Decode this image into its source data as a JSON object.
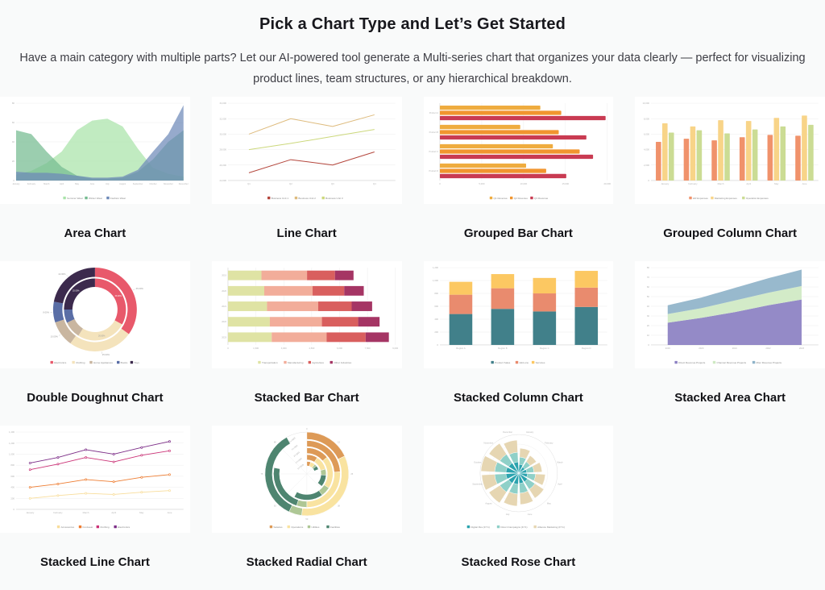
{
  "header": {
    "title": "Pick a Chart Type and Let’s Get Started",
    "description": "Have a main category with multiple parts? Let our AI-powered tool generate a Multi-series chart that organizes your data clearly — perfect for visualizing product lines, team structures, or any hierarchical breakdown."
  },
  "colors": {
    "page_bg": "#f9fafa",
    "card_bg": "#ffffff",
    "title_text": "#17171c",
    "body_text": "#3d3d44"
  },
  "cards": [
    {
      "label": "Area Chart"
    },
    {
      "label": "Line Chart"
    },
    {
      "label": "Grouped Bar Chart"
    },
    {
      "label": "Grouped Column Chart"
    },
    {
      "label": "Double Doughnut Chart"
    },
    {
      "label": "Stacked Bar Chart"
    },
    {
      "label": "Stacked Column Chart"
    },
    {
      "label": "Stacked Area Chart"
    },
    {
      "label": "Stacked Line Chart"
    },
    {
      "label": "Stacked Radial Chart"
    },
    {
      "label": "Stacked Rose Chart"
    }
  ],
  "chart_data": [
    {
      "type": "area",
      "title": "Area Chart",
      "ylim": [
        0,
        80
      ],
      "yticks": 4,
      "grid": true,
      "legend_position": "bottom",
      "x": [
        "January",
        "February",
        "March",
        "April",
        "May",
        "June",
        "July",
        "August",
        "September",
        "October",
        "November",
        "December"
      ],
      "series": [
        {
          "name": "Summer Wear",
          "color": "#a9e3a9",
          "values": [
            6,
            10,
            18,
            30,
            52,
            62,
            64,
            56,
            33,
            13,
            7,
            4
          ]
        },
        {
          "name": "Winter Wear",
          "color": "#74bb90",
          "values": [
            52,
            48,
            30,
            14,
            5,
            2,
            2,
            3,
            9,
            22,
            40,
            52
          ]
        },
        {
          "name": "Fashion Wear",
          "color": "#6d89b8",
          "values": [
            9,
            8,
            8,
            7,
            5,
            3,
            3,
            4,
            11,
            30,
            48,
            78
          ]
        }
      ]
    },
    {
      "type": "line",
      "title": "Line Chart",
      "ylim": [
        24000,
        34000
      ],
      "yticks": 5,
      "grid": true,
      "legend_position": "bottom",
      "x": [
        "Q1",
        "Q2",
        "Q3",
        "Q4"
      ],
      "series": [
        {
          "name": "Business Unit 1",
          "color": "#b4463c",
          "values": [
            25000,
            26700,
            26000,
            27700
          ]
        },
        {
          "name": "Business Unit 2",
          "color": "#debb7d",
          "values": [
            30000,
            32000,
            31000,
            32500
          ]
        },
        {
          "name": "Business Unit 3",
          "color": "#ccd87c",
          "values": [
            28000,
            28800,
            29700,
            30600
          ]
        }
      ]
    },
    {
      "type": "grouped-bar",
      "title": "Grouped Bar Chart",
      "xlim": [
        0,
        20000
      ],
      "xticks": 4,
      "grid": true,
      "legend_position": "bottom",
      "categories": [
        "Product A",
        "Product B",
        "Product C",
        "Product D"
      ],
      "series": [
        {
          "name": "Q1 Revenue",
          "color": "#efac3f",
          "values": [
            12000,
            9600,
            13500,
            10300
          ]
        },
        {
          "name": "Q2 Revenue",
          "color": "#f1952f",
          "values": [
            14500,
            14200,
            16700,
            12700
          ]
        },
        {
          "name": "Q3 Revenue",
          "color": "#c93b52",
          "values": [
            19800,
            17500,
            18300,
            15100
          ]
        }
      ]
    },
    {
      "type": "grouped-column",
      "title": "Grouped Column Chart",
      "ylim": [
        0,
        10000
      ],
      "yticks": 5,
      "grid": true,
      "legend_position": "bottom",
      "categories": [
        "January",
        "February",
        "March",
        "April",
        "May",
        "June"
      ],
      "series": [
        {
          "name": "HR Expenses",
          "color": "#f0926b",
          "values": [
            5000,
            5400,
            5200,
            5600,
            5900,
            5800
          ]
        },
        {
          "name": "Marketing Expenses",
          "color": "#f8d488",
          "values": [
            7400,
            7000,
            7800,
            7700,
            8100,
            8400
          ]
        },
        {
          "name": "Operation Expenses",
          "color": "#cbdc94",
          "values": [
            6200,
            6500,
            6100,
            6600,
            7000,
            7200
          ]
        }
      ]
    },
    {
      "type": "double-doughnut",
      "title": "Double Doughnut Chart",
      "legend_position": "bottom",
      "segments": [
        {
          "label": "Electronics",
          "color": "#e8596b",
          "outer": 35,
          "inner": 33
        },
        {
          "label": "Clothing",
          "color": "#f4e3bc",
          "outer": 25,
          "inner": 26
        },
        {
          "label": "Home Appliances",
          "color": "#c9b6a0",
          "outer": 10,
          "inner": 9
        },
        {
          "label": "Books",
          "color": "#5a6ea6",
          "outer": 8,
          "inner": 7
        },
        {
          "label": "Toys",
          "color": "#3c2a4d",
          "outer": 22,
          "inner": 25
        }
      ]
    },
    {
      "type": "stacked-bar",
      "title": "Stacked Bar Chart",
      "xlim": [
        0,
        9000
      ],
      "xticks": 6,
      "grid": true,
      "legend_position": "bottom",
      "categories": [
        "2019",
        "2020",
        "2021",
        "2022",
        "2023"
      ],
      "series": [
        {
          "name": "Transportation",
          "color": "#dfe3a4",
          "values": [
            1800,
            1950,
            2100,
            2250,
            2350
          ]
        },
        {
          "name": "Manufacturing",
          "color": "#f2ad9a",
          "values": [
            2450,
            2600,
            2750,
            2800,
            2950
          ]
        },
        {
          "name": "Agriculture",
          "color": "#d95f5e",
          "values": [
            1500,
            1700,
            1800,
            1950,
            2100
          ]
        },
        {
          "name": "Other Industries",
          "color": "#a53564",
          "values": [
            1000,
            1050,
            1100,
            1150,
            1250
          ]
        }
      ]
    },
    {
      "type": "stacked-column",
      "title": "Stacked Column Chart",
      "ylim": [
        0,
        1200
      ],
      "yticks": 6,
      "grid": true,
      "legend_position": "bottom",
      "categories": [
        "Region A",
        "Region B",
        "Region C",
        "Region D"
      ],
      "series": [
        {
          "name": "Product Sales",
          "color": "#41808a",
          "values": [
            480,
            560,
            520,
            590
          ]
        },
        {
          "name": "Add-ons",
          "color": "#e98b6e",
          "values": [
            300,
            320,
            280,
            300
          ]
        },
        {
          "name": "Services",
          "color": "#fcc862",
          "values": [
            200,
            220,
            240,
            260
          ]
        }
      ]
    },
    {
      "type": "stacked-area",
      "title": "Stacked Area Chart",
      "ylim": [
        0,
        80
      ],
      "yticks": 8,
      "grid": true,
      "legend_position": "bottom",
      "x": [
        "2019",
        "2020",
        "2021",
        "2022",
        "2023"
      ],
      "series": [
        {
          "name": "Direct Revenue Projects",
          "color": "#8b80c2",
          "values": [
            23,
            28,
            34,
            41,
            47
          ]
        },
        {
          "name": "Channel Revenue Projects",
          "color": "#cfe9c3",
          "values": [
            9,
            10,
            12,
            13,
            14
          ]
        },
        {
          "name": "Misc Revenue Projects",
          "color": "#8fb3c9",
          "values": [
            9,
            11,
            13,
            15,
            17
          ]
        }
      ]
    },
    {
      "type": "stacked-line",
      "title": "Stacked Line Chart",
      "ylim": [
        0,
        1400
      ],
      "yticks": 7,
      "grid": true,
      "legend_position": "bottom",
      "x": [
        "January",
        "February",
        "March",
        "April",
        "May",
        "June"
      ],
      "series": [
        {
          "name": "Accessories",
          "color": "#f8dd9b",
          "values": [
            200,
            250,
            290,
            270,
            310,
            340
          ]
        },
        {
          "name": "Footwear",
          "color": "#ee7d32",
          "values": [
            400,
            460,
            540,
            500,
            580,
            630
          ]
        },
        {
          "name": "Clothing",
          "color": "#cb3377",
          "values": [
            720,
            820,
            940,
            860,
            980,
            1060
          ]
        },
        {
          "name": "Electronics",
          "color": "#7c2d87",
          "values": [
            840,
            940,
            1080,
            1000,
            1120,
            1230
          ]
        }
      ]
    },
    {
      "type": "stacked-radial",
      "title": "Stacked Radial Chart",
      "scale_max": 100,
      "legend_position": "bottom",
      "series": [
        {
          "name": "Salaries",
          "color": "#dd9a57"
        },
        {
          "name": "Operations",
          "color": "#f9e3a0"
        },
        {
          "name": "Utilities",
          "color": "#aec795"
        },
        {
          "name": "Facilities",
          "color": "#4e8570"
        }
      ],
      "rings": [
        {
          "label": "FY 2023",
          "values": [
            18,
            34,
            5,
            35
          ]
        },
        {
          "label": "FY 2022",
          "values": [
            24,
            26,
            5,
            23
          ]
        },
        {
          "label": "FY 2021",
          "values": [
            14,
            20,
            6,
            18
          ]
        },
        {
          "label": "FY 2020",
          "values": [
            9,
            12,
            5,
            10
          ]
        },
        {
          "label": "FY 2019",
          "values": [
            5,
            6,
            3,
            5
          ]
        }
      ]
    },
    {
      "type": "stacked-rose",
      "title": "Stacked Rose Chart",
      "legend_position": "bottom",
      "categories": [
        "January",
        "February",
        "March",
        "April",
        "May",
        "June",
        "July",
        "August",
        "September",
        "October",
        "November",
        "December"
      ],
      "series": [
        {
          "name": "Digital Rev (FY1)",
          "color": "#2ba3ae"
        },
        {
          "name": "Direct Campaigns (FY1)",
          "color": "#8fd0c8"
        },
        {
          "name": "Alliance Marketing (FY1)",
          "color": "#e6d6b2"
        }
      ],
      "values": [
        [
          11,
          9,
          11
        ],
        [
          9,
          8,
          9
        ],
        [
          10,
          9,
          10
        ],
        [
          11,
          10,
          12
        ],
        [
          13,
          11,
          13
        ],
        [
          13,
          12,
          14
        ],
        [
          14,
          12,
          15
        ],
        [
          15,
          13,
          16
        ],
        [
          16,
          14,
          16
        ],
        [
          16,
          14,
          17
        ],
        [
          15,
          13,
          16
        ],
        [
          14,
          12,
          15
        ]
      ]
    }
  ]
}
